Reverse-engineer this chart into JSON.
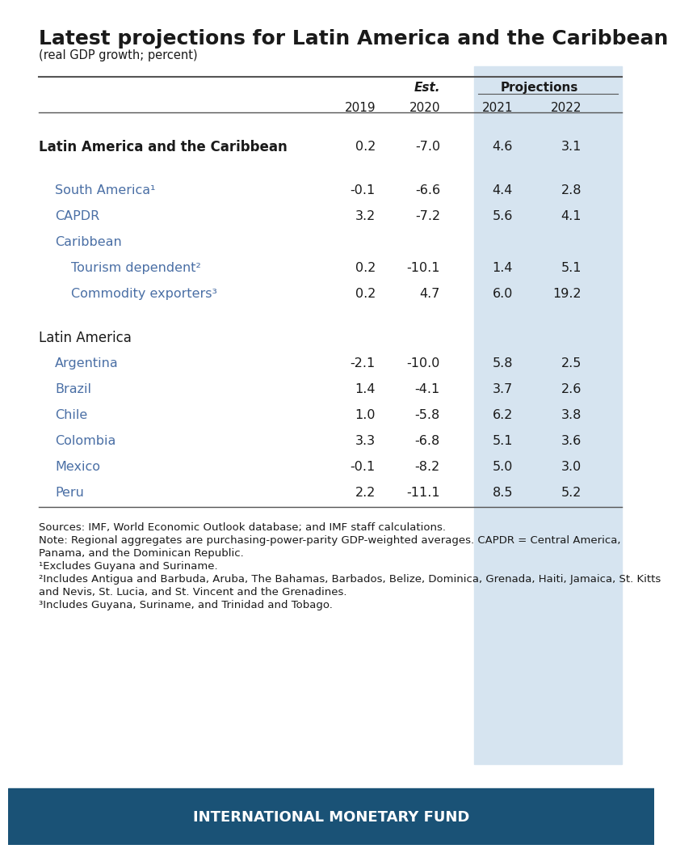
{
  "title": "Latest projections for Latin America and the Caribbean",
  "subtitle": "(real GDP growth; percent)",
  "col_header_labels": [
    "",
    "Est.",
    "Projections"
  ],
  "col_years": [
    "2019",
    "2020",
    "2021",
    "2022"
  ],
  "proj_bg_color": "#d6e4f0",
  "header_line_color": "#555555",
  "imf_bar_color": "#1a5276",
  "imf_bar_text": "INTERNATIONAL MONETARY FUND",
  "rows": [
    {
      "label": "Latin America and the Caribbean",
      "indent": 0,
      "bold": true,
      "values": [
        "0.2",
        "-7.0",
        "4.6",
        "3.1"
      ],
      "spacer_before": false,
      "header_only": false
    },
    {
      "label": "",
      "indent": 0,
      "bold": false,
      "values": [
        "",
        "",
        "",
        ""
      ],
      "spacer_before": false,
      "header_only": false
    },
    {
      "label": "South America¹",
      "indent": 1,
      "bold": false,
      "values": [
        "-0.1",
        "-6.6",
        "4.4",
        "2.8"
      ],
      "spacer_before": false,
      "header_only": false
    },
    {
      "label": "CAPDR",
      "indent": 1,
      "bold": false,
      "values": [
        "3.2",
        "-7.2",
        "5.6",
        "4.1"
      ],
      "spacer_before": false,
      "header_only": false
    },
    {
      "label": "Caribbean",
      "indent": 1,
      "bold": false,
      "values": [
        "",
        "",
        "",
        ""
      ],
      "spacer_before": false,
      "header_only": true
    },
    {
      "label": "Tourism dependent²",
      "indent": 2,
      "bold": false,
      "values": [
        "0.2",
        "-10.1",
        "1.4",
        "5.1"
      ],
      "spacer_before": false,
      "header_only": false
    },
    {
      "label": "Commodity exporters³",
      "indent": 2,
      "bold": false,
      "values": [
        "0.2",
        "4.7",
        "6.0",
        "19.2"
      ],
      "spacer_before": false,
      "header_only": false
    },
    {
      "label": "",
      "indent": 0,
      "bold": false,
      "values": [
        "",
        "",
        "",
        ""
      ],
      "spacer_before": false,
      "header_only": false
    },
    {
      "label": "Latin America",
      "indent": 0,
      "bold": false,
      "values": [
        "",
        "",
        "",
        ""
      ],
      "spacer_before": true,
      "header_only": true
    },
    {
      "label": "Argentina",
      "indent": 1,
      "bold": false,
      "values": [
        "-2.1",
        "-10.0",
        "5.8",
        "2.5"
      ],
      "spacer_before": false,
      "header_only": false
    },
    {
      "label": "Brazil",
      "indent": 1,
      "bold": false,
      "values": [
        "1.4",
        "-4.1",
        "3.7",
        "2.6"
      ],
      "spacer_before": false,
      "header_only": false
    },
    {
      "label": "Chile",
      "indent": 1,
      "bold": false,
      "values": [
        "1.0",
        "-5.8",
        "6.2",
        "3.8"
      ],
      "spacer_before": false,
      "header_only": false
    },
    {
      "label": "Colombia",
      "indent": 1,
      "bold": false,
      "values": [
        "3.3",
        "-6.8",
        "5.1",
        "3.6"
      ],
      "spacer_before": false,
      "header_only": false
    },
    {
      "label": "Mexico",
      "indent": 1,
      "bold": false,
      "values": [
        "-0.1",
        "-8.2",
        "5.0",
        "3.0"
      ],
      "spacer_before": false,
      "header_only": false
    },
    {
      "label": "Peru",
      "indent": 1,
      "bold": false,
      "values": [
        "2.2",
        "-11.1",
        "8.5",
        "5.2"
      ],
      "spacer_before": false,
      "header_only": false
    }
  ],
  "footnotes": [
    "Sources: IMF, World Economic Outlook database; and IMF staff calculations.",
    "Note: Regional aggregates are purchasing-power-parity GDP-weighted averages. CAPDR = Central America,",
    "Panama, and the Dominican Republic.",
    "¹Excludes Guyana and Suriname.",
    "²Includes Antigua and Barbuda, Aruba, The Bahamas, Barbados, Belize, Dominica, Grenada, Haiti, Jamaica, St. Kitts",
    "and Nevis, St. Lucia, and St. Vincent and the Grenadines.",
    "³Includes Guyana, Suriname, and Trinidad and Tobago."
  ],
  "text_color": "#1a1a1a",
  "subrow_color": "#4a6fa5",
  "bg_color": "#ffffff"
}
